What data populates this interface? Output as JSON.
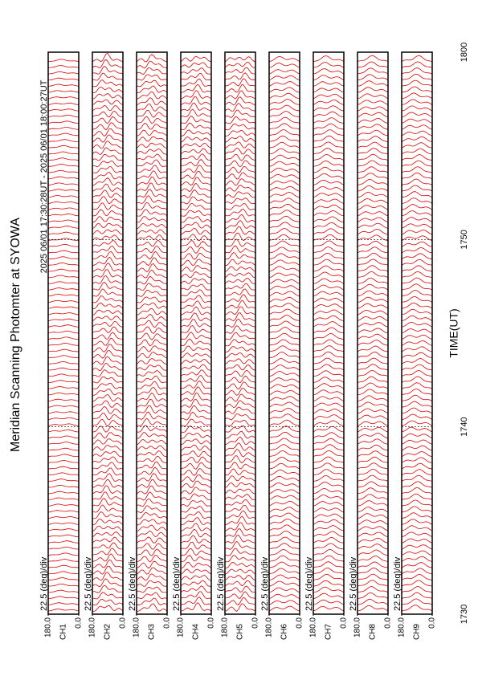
{
  "chart_data": {
    "type": "scan-stack",
    "title": "Meridian Scanning Photomter at SYOWA",
    "subtitle": "2025 06/01 17:30:28UT - 2025 06/01 18:00:27UT",
    "xlabel": "TIME(UT)",
    "xlim": [
      30,
      60
    ],
    "xticks": [
      {
        "value": 30,
        "label": "1730"
      },
      {
        "value": 40,
        "label": "1740"
      },
      {
        "value": 50,
        "label": "1750"
      },
      {
        "value": 60,
        "label": "1800"
      }
    ],
    "ylim": [
      0,
      180
    ],
    "yticks": [
      {
        "value": 0,
        "label": "0.0"
      },
      {
        "value": 180,
        "label": "180.0"
      }
    ],
    "scale_label": "22.5 (deg)/div",
    "color": "#e00000",
    "panels": [
      "CH1",
      "CH2",
      "CH3",
      "CH4",
      "CH5",
      "CH6",
      "CH7",
      "CH8",
      "CH9"
    ]
  }
}
